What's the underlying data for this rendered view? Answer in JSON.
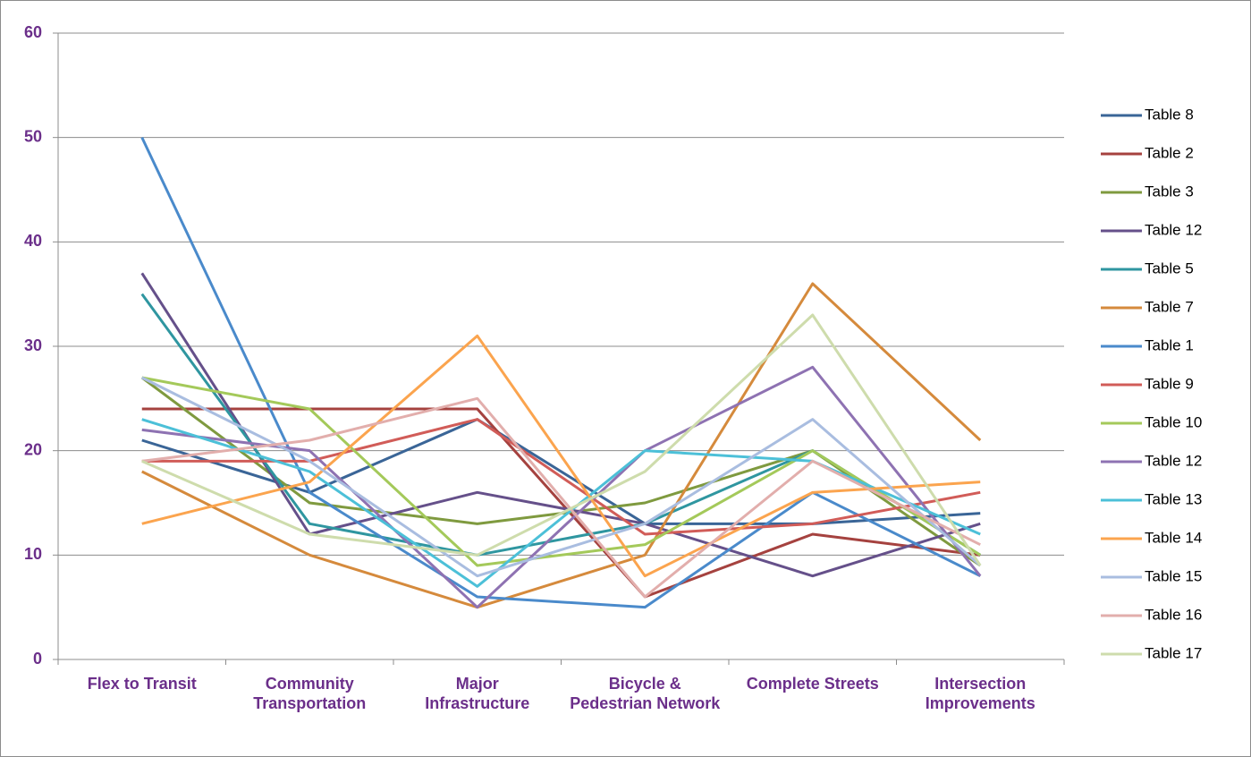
{
  "chart_data": {
    "type": "line",
    "categories": [
      "Flex to Transit",
      "Community Transportation",
      "Major Infrastructure",
      "Bicycle & Pedestrian Network",
      "Complete Streets",
      "Intersection Improvements"
    ],
    "ylim": [
      0,
      60
    ],
    "yticks": [
      0,
      10,
      20,
      30,
      40,
      50,
      60
    ],
    "grid": true,
    "legend": "right",
    "series": [
      {
        "name": "Table 8",
        "color": "#3a6597",
        "values": [
          21,
          16,
          23,
          13,
          13,
          14
        ]
      },
      {
        "name": "Table 2",
        "color": "#a5423f",
        "values": [
          24,
          24,
          24,
          6,
          12,
          10
        ]
      },
      {
        "name": "Table 3",
        "color": "#7f9a3f",
        "values": [
          27,
          15,
          13,
          15,
          20,
          9
        ]
      },
      {
        "name": "Table 12",
        "color": "#65508a",
        "values": [
          37,
          12,
          16,
          13,
          8,
          13
        ]
      },
      {
        "name": "Table 5",
        "color": "#2f96a0",
        "values": [
          35,
          13,
          10,
          13,
          20,
          10
        ]
      },
      {
        "name": "Table 7",
        "color": "#d58a3c",
        "values": [
          18,
          10,
          5,
          10,
          36,
          21
        ]
      },
      {
        "name": "Table 1",
        "color": "#4a8acb",
        "values": [
          50,
          16,
          6,
          5,
          16,
          8
        ]
      },
      {
        "name": "Table 9",
        "color": "#d15c58",
        "values": [
          19,
          19,
          23,
          12,
          13,
          16
        ]
      },
      {
        "name": "Table 10",
        "color": "#a4c95a",
        "values": [
          27,
          24,
          9,
          11,
          20,
          10
        ]
      },
      {
        "name": "Table 12",
        "color": "#8e72b2",
        "values": [
          22,
          20,
          5,
          20,
          28,
          8
        ]
      },
      {
        "name": "Table 13",
        "color": "#4cc0d8",
        "values": [
          23,
          18,
          7,
          20,
          19,
          12
        ]
      },
      {
        "name": "Table 14",
        "color": "#fba44e",
        "values": [
          13,
          17,
          31,
          8,
          16,
          17
        ]
      },
      {
        "name": "Table 15",
        "color": "#a9bde0",
        "values": [
          27,
          19,
          8,
          13,
          23,
          9
        ]
      },
      {
        "name": "Table 16",
        "color": "#e2aeac",
        "values": [
          19,
          21,
          25,
          6,
          19,
          11
        ]
      },
      {
        "name": "Table 17",
        "color": "#cedcac",
        "values": [
          19,
          12,
          10,
          18,
          33,
          9
        ]
      }
    ]
  }
}
